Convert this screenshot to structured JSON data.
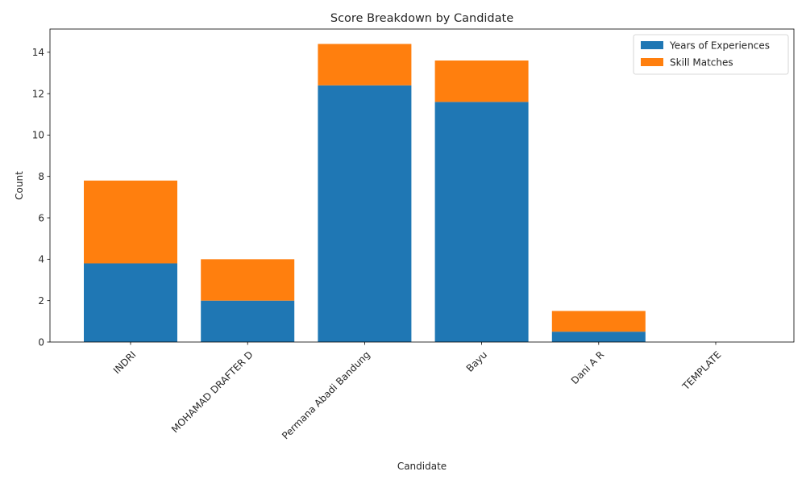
{
  "chart_data": {
    "type": "bar",
    "stacked": true,
    "title": "Score Breakdown by Candidate",
    "xlabel": "Candidate",
    "ylabel": "Count",
    "categories": [
      "INDRI",
      "MOHAMAD DRAFTER D",
      "Permana Abadi Bandung",
      "Bayu",
      "Dani A R",
      "TEMPLATE"
    ],
    "series": [
      {
        "name": "Years of Experiences",
        "color": "#1f77b4",
        "values": [
          3.8,
          2.0,
          12.4,
          11.6,
          0.5,
          0.0
        ]
      },
      {
        "name": "Skill Matches",
        "color": "#ff7f0e",
        "values": [
          4.0,
          2.0,
          2.0,
          2.0,
          1.0,
          0.0
        ]
      }
    ],
    "ylim": [
      0,
      15.12
    ],
    "yticks": [
      0,
      2,
      4,
      6,
      8,
      10,
      12,
      14
    ],
    "grid": false,
    "legend_position": "top-right"
  }
}
